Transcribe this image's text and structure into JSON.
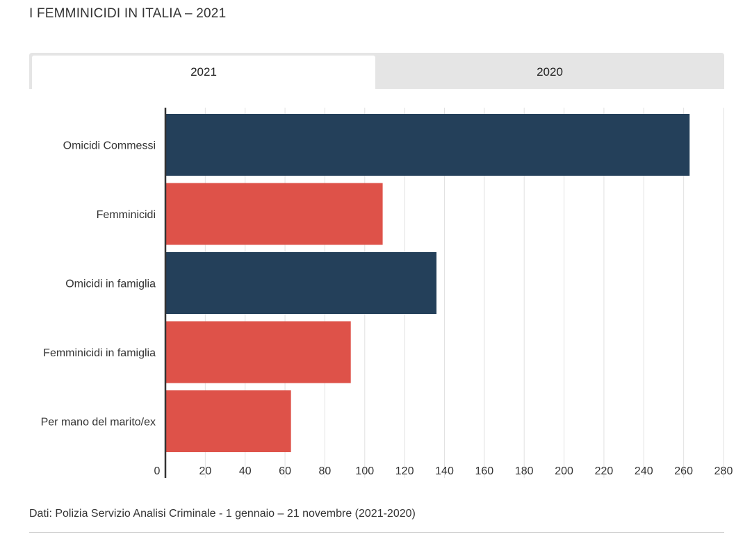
{
  "title": "I FEMMINICIDI IN ITALIA – 2021",
  "tabs": [
    {
      "label": "2021",
      "active": true
    },
    {
      "label": "2020",
      "active": false
    }
  ],
  "footer": {
    "source": "Dati:  Polizia Servizio Analisi Criminale -  1 gennaio – 21 novembre (2021-2020)"
  },
  "colors": {
    "dark_blue": "#24405a",
    "red": "#de5249",
    "grid": "#e2e2e2",
    "axis": "#333333"
  },
  "chart_data": {
    "type": "bar",
    "orientation": "horizontal",
    "categories": [
      "Omicidi Commessi",
      "Femminicidi",
      "Omicidi in famiglia",
      "Femminicidi in famiglia",
      "Per mano del marito/ex"
    ],
    "values": [
      263,
      109,
      136,
      93,
      63
    ],
    "bar_colors": [
      "#24405a",
      "#de5249",
      "#24405a",
      "#de5249",
      "#de5249"
    ],
    "xlim": [
      0,
      280
    ],
    "xticks": [
      0,
      20,
      40,
      60,
      80,
      100,
      120,
      140,
      160,
      180,
      200,
      220,
      240,
      260,
      280
    ],
    "grid": true,
    "legend": "none",
    "xlabel": "",
    "ylabel": ""
  }
}
